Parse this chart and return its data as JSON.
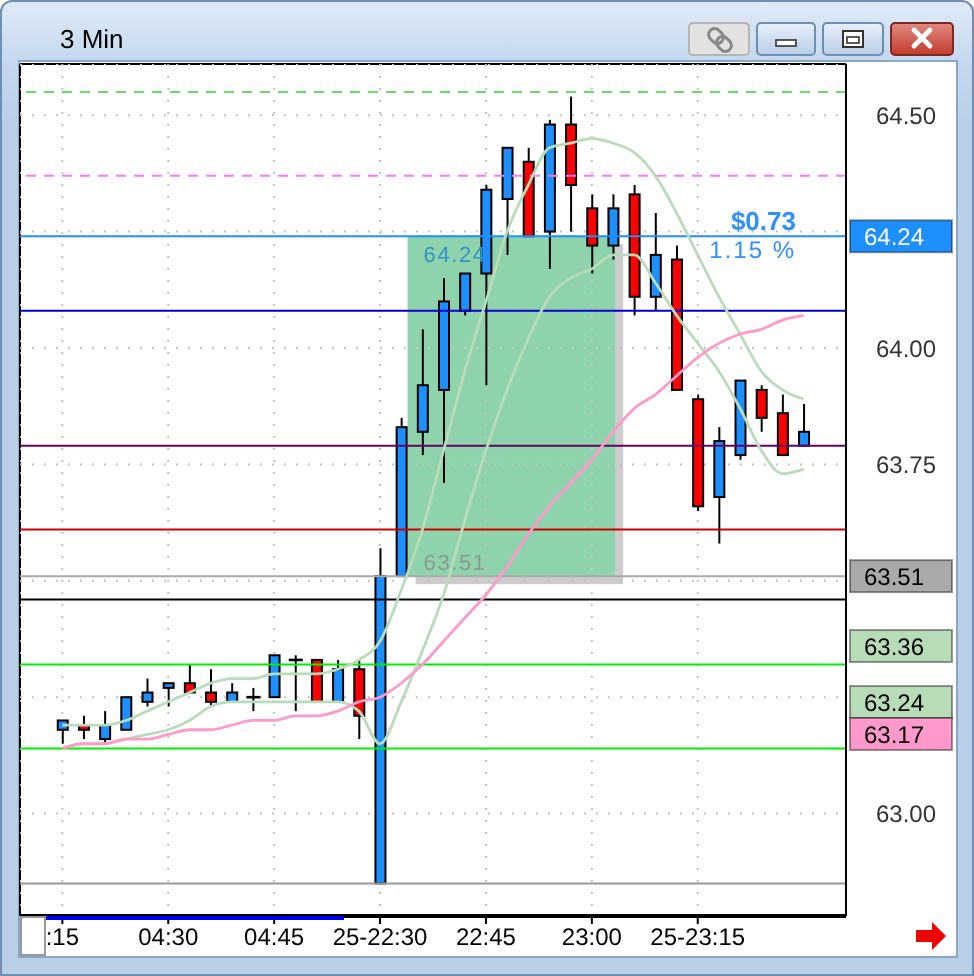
{
  "chart_data": {
    "type": "candlestick",
    "title": "3 Min",
    "categories": [
      ":15",
      null,
      null,
      null,
      null,
      "04:30",
      null,
      null,
      null,
      null,
      "04:45",
      null,
      null,
      null,
      null,
      "25-22:30",
      null,
      null,
      null,
      null,
      "22:45",
      null,
      null,
      null,
      null,
      "23:00",
      null,
      null,
      null,
      null,
      "25-23:15",
      null,
      null,
      null,
      null,
      null
    ],
    "ohlc": [
      [
        63.18,
        63.2,
        63.15,
        63.2
      ],
      [
        63.19,
        63.21,
        63.16,
        63.18
      ],
      [
        63.16,
        63.22,
        63.15,
        63.19
      ],
      [
        63.18,
        63.25,
        63.18,
        63.25
      ],
      [
        63.24,
        63.29,
        63.23,
        63.26
      ],
      [
        63.27,
        63.28,
        63.23,
        63.28
      ],
      [
        63.28,
        63.32,
        63.26,
        63.26
      ],
      [
        63.26,
        63.31,
        63.23,
        63.24
      ],
      [
        63.24,
        63.28,
        63.24,
        63.26
      ],
      [
        63.25,
        63.27,
        63.22,
        63.25
      ],
      [
        63.25,
        63.34,
        63.25,
        63.34
      ],
      [
        63.33,
        63.34,
        63.22,
        63.33
      ],
      [
        63.33,
        63.33,
        63.24,
        63.24
      ],
      [
        63.24,
        63.33,
        63.24,
        63.31
      ],
      [
        63.31,
        63.33,
        63.16,
        63.21
      ],
      [
        62.85,
        63.57,
        62.85,
        63.51
      ],
      [
        63.51,
        63.85,
        63.51,
        63.83
      ],
      [
        63.82,
        64.04,
        63.77,
        63.92
      ],
      [
        63.91,
        64.15,
        63.71,
        64.1
      ],
      [
        64.08,
        64.16,
        64.07,
        64.16
      ],
      [
        64.16,
        64.35,
        63.92,
        64.34
      ],
      [
        64.32,
        64.43,
        64.2,
        64.43
      ],
      [
        64.4,
        64.43,
        64.24,
        64.24
      ],
      [
        64.25,
        64.49,
        64.17,
        64.48
      ],
      [
        64.48,
        64.54,
        64.25,
        64.35
      ],
      [
        64.3,
        64.33,
        64.16,
        64.22
      ],
      [
        64.22,
        64.33,
        64.19,
        64.3
      ],
      [
        64.33,
        64.35,
        64.07,
        64.11
      ],
      [
        64.11,
        64.29,
        64.08,
        64.2
      ],
      [
        64.19,
        64.22,
        63.91,
        63.91
      ],
      [
        63.89,
        63.9,
        63.65,
        63.66
      ],
      [
        63.68,
        63.83,
        63.58,
        63.8
      ],
      [
        63.77,
        63.93,
        63.76,
        63.93
      ],
      [
        63.91,
        63.92,
        63.82,
        63.85
      ],
      [
        63.86,
        63.9,
        63.77,
        63.77
      ],
      [
        63.79,
        63.88,
        63.79,
        63.82
      ]
    ],
    "colors": [
      "#1e8fff",
      "#ff0000",
      "#1e8fff",
      "#1e8fff",
      "#1e8fff",
      "#1e8fff",
      "#ff0000",
      "#ff0000",
      "#1e8fff",
      "#000000",
      "#1e8fff",
      "#000000",
      "#ff0000",
      "#1e8fff",
      "#ff0000",
      "#1e8fff",
      "#1e8fff",
      "#1e8fff",
      "#1e8fff",
      "#1e8fff",
      "#1e8fff",
      "#1e8fff",
      "#ff0000",
      "#1e8fff",
      "#ff0000",
      "#ff0000",
      "#1e8fff",
      "#ff0000",
      "#1e8fff",
      "#ff0000",
      "#ff0000",
      "#1e8fff",
      "#1e8fff",
      "#ff0000",
      "#ff0000",
      "#1e8fff"
    ],
    "series": [
      {
        "type": "line",
        "color": "#b8dcb8",
        "values": [
          63.19,
          63.19,
          63.19,
          63.2,
          63.22,
          63.24,
          63.26,
          63.28,
          63.29,
          63.29,
          63.3,
          63.3,
          63.3,
          63.31,
          63.33,
          63.37,
          63.48,
          63.61,
          63.78,
          63.95,
          64.1,
          64.25,
          64.35,
          64.43,
          64.44,
          64.45,
          64.44,
          64.42,
          64.37,
          64.29,
          64.2,
          64.11,
          64.03,
          63.95,
          63.91,
          63.89
        ]
      },
      {
        "type": "line",
        "color": "#b8dcb8",
        "values": [
          63.14,
          63.15,
          63.15,
          63.16,
          63.17,
          63.18,
          63.2,
          63.23,
          63.24,
          63.24,
          63.24,
          63.24,
          63.24,
          63.24,
          63.22,
          63.15,
          63.24,
          63.35,
          63.47,
          63.63,
          63.78,
          63.91,
          64.02,
          64.11,
          64.15,
          64.17,
          64.2,
          64.2,
          64.14,
          64.07,
          64.01,
          63.95,
          63.87,
          63.78,
          63.73,
          63.74
        ]
      },
      {
        "type": "line",
        "color": "#ff99cc",
        "values": [
          63.14,
          63.15,
          63.15,
          63.16,
          63.16,
          63.17,
          63.18,
          63.18,
          63.19,
          63.2,
          63.2,
          63.21,
          63.21,
          63.22,
          63.24,
          63.25,
          63.28,
          63.32,
          63.37,
          63.42,
          63.47,
          63.53,
          63.6,
          63.66,
          63.71,
          63.76,
          63.82,
          63.87,
          63.9,
          63.94,
          63.98,
          64.01,
          64.03,
          64.04,
          64.06,
          64.07
        ]
      }
    ],
    "ylim": [
      62.78,
      64.61
    ],
    "yticks": [
      {
        "value": 63,
        "label": "63.00"
      },
      {
        "value": 63.25,
        "label": null
      },
      {
        "value": 63.5,
        "label": null
      },
      {
        "value": 63.75,
        "label": "63.75"
      },
      {
        "value": 64,
        "label": "64.00"
      },
      {
        "value": 64.25,
        "label": null
      },
      {
        "value": 64.5,
        "label": "64.50"
      }
    ],
    "grid": true,
    "marker": "none",
    "ref_lines": [
      {
        "axis": "y",
        "value": 64.55,
        "color": "#66dd66",
        "line_style": "dashed"
      },
      {
        "axis": "y",
        "value": 64.37,
        "color": "#ff77ff",
        "line_style": "dashed"
      },
      {
        "axis": "y",
        "value": 64.24,
        "label": "64.24",
        "color": "#1e8fff"
      },
      {
        "axis": "y",
        "value": 64.08,
        "color": "#0000cc"
      },
      {
        "axis": "y",
        "value": 63.79,
        "color": "#660066"
      },
      {
        "axis": "y",
        "value": 63.61,
        "color": "#cc0000"
      },
      {
        "axis": "y",
        "value": 63.51,
        "label": "63.51",
        "color": "#aaaaaa"
      },
      {
        "axis": "y",
        "value": 63.46,
        "color": "#000000"
      },
      {
        "axis": "y",
        "value": 63.32,
        "color": "#00ee00"
      },
      {
        "axis": "y",
        "value": 63.14,
        "color": "#00ee00"
      },
      {
        "axis": "y",
        "value": 62.85,
        "color": "#999999"
      }
    ],
    "annotations": [
      {
        "text": "64.24",
        "y": 64.24
      },
      {
        "text": "63.51",
        "y": 63.51
      },
      "$0.73",
      "1.15 %",
      "63.36",
      "63.24",
      "63.17"
    ]
  }
}
